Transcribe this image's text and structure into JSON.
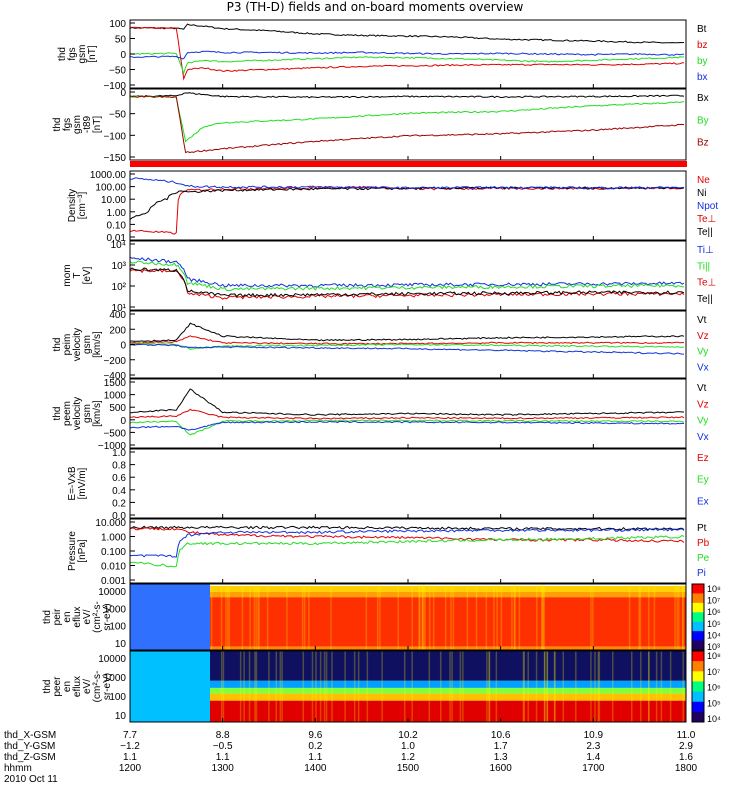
{
  "title": "P3 (TH-D) fields and on-board moments overview",
  "colors": {
    "black": "#000000",
    "red": "#e00000",
    "green": "#22dd22",
    "blue": "#1030e0",
    "darkred": "#a00000",
    "band": "#ff0000"
  },
  "chart_data": [
    {
      "type": "line",
      "name": "fgs",
      "ylabel": [
        "thd",
        "fgs",
        "gsm",
        "[nT]"
      ],
      "yticks": [
        "100",
        "50",
        "0",
        "−50",
        "−100"
      ],
      "ylim": [
        -110,
        110
      ],
      "series": [
        {
          "name": "Bt",
          "color": "black",
          "x": [
            1200,
            1250,
            1258,
            1262,
            1280,
            1300,
            1350,
            1400,
            1450,
            1500,
            1550,
            1600,
            1650,
            1700,
            1750,
            1800
          ],
          "y": [
            85,
            83,
            80,
            95,
            90,
            82,
            75,
            65,
            60,
            58,
            55,
            48,
            45,
            42,
            38,
            35
          ]
        },
        {
          "name": "bz",
          "color": "red",
          "x": [
            1200,
            1250,
            1258,
            1262,
            1280,
            1300,
            1350,
            1400,
            1450,
            1500,
            1550,
            1600,
            1650,
            1700,
            1750,
            1800
          ],
          "y": [
            85,
            83,
            -80,
            -50,
            -45,
            -55,
            -50,
            -45,
            -40,
            -38,
            -36,
            -35,
            -34,
            -35,
            -33,
            -30
          ]
        },
        {
          "name": "by",
          "color": "green",
          "x": [
            1200,
            1250,
            1258,
            1262,
            1280,
            1300,
            1350,
            1400,
            1450,
            1500,
            1550,
            1600,
            1650,
            1700,
            1750,
            1800
          ],
          "y": [
            0,
            2,
            -60,
            -30,
            -20,
            -25,
            -20,
            -15,
            -10,
            -12,
            -15,
            -20,
            -25,
            -20,
            -15,
            -10
          ]
        },
        {
          "name": "bx",
          "color": "blue",
          "x": [
            1200,
            1250,
            1258,
            1262,
            1280,
            1300,
            1350,
            1400,
            1450,
            1500,
            1550,
            1600,
            1650,
            1700,
            1750,
            1800
          ],
          "y": [
            -10,
            -8,
            -15,
            5,
            8,
            5,
            5,
            3,
            5,
            2,
            0,
            2,
            0,
            -2,
            0,
            -3
          ]
        }
      ]
    },
    {
      "type": "line",
      "name": "fgs-t89",
      "ylabel": [
        "thd",
        "fgs",
        "gsm",
        "-t89",
        "[nT]"
      ],
      "yticks": [
        "0",
        "−50",
        "−100",
        "−150"
      ],
      "ylim": [
        -170,
        20
      ],
      "series": [
        {
          "name": "Bx",
          "color": "black",
          "x": [
            1200,
            1250,
            1260,
            1300,
            1400,
            1500,
            1600,
            1700,
            1800
          ],
          "y": [
            0,
            2,
            10,
            0,
            -2,
            0,
            -1,
            0,
            2
          ]
        },
        {
          "name": "By",
          "color": "green",
          "x": [
            1200,
            1250,
            1260,
            1280,
            1300,
            1400,
            1500,
            1600,
            1700,
            1800
          ],
          "y": [
            0,
            -2,
            -120,
            -80,
            -70,
            -60,
            -45,
            -40,
            -25,
            -15
          ]
        },
        {
          "name": "Bz",
          "color": "darkred",
          "x": [
            1200,
            1250,
            1260,
            1280,
            1300,
            1400,
            1500,
            1600,
            1700,
            1800
          ],
          "y": [
            0,
            -2,
            -150,
            -145,
            -140,
            -120,
            -105,
            -100,
            -90,
            -75
          ]
        }
      ]
    },
    {
      "type": "line",
      "name": "density",
      "log": true,
      "ylabel": [
        "Density",
        "[cm⁻³]"
      ],
      "yticks": [
        "1000.00",
        "100.00",
        "10.00",
        "1.00",
        "0.10",
        "0.01"
      ],
      "ylim": [
        0.01,
        1000
      ],
      "series": [
        {
          "name": "Ne",
          "color": "red",
          "x": [
            1200,
            1250,
            1260,
            1300,
            1400,
            1450,
            1500,
            1600,
            1700,
            1800
          ],
          "y": [
            0.05,
            0.03,
            40,
            50,
            60,
            70,
            50,
            55,
            55,
            60
          ]
        },
        {
          "name": "Ni",
          "color": "black",
          "x": [
            1200,
            1220,
            1240,
            1255,
            1262,
            1300,
            1400,
            1500,
            1600,
            1700,
            1800
          ],
          "y": [
            0.3,
            1,
            10,
            40,
            30,
            40,
            50,
            55,
            60,
            60,
            60
          ]
        },
        {
          "name": "Npot",
          "color": "blue",
          "x": [
            1200,
            1250,
            1262,
            1300,
            1400,
            1500,
            1600,
            1700,
            1800
          ],
          "y": [
            300,
            150,
            80,
            70,
            70,
            60,
            65,
            60,
            65
          ]
        }
      ],
      "legend_extra": [
        "Te⊥",
        "Te||"
      ]
    },
    {
      "type": "line",
      "name": "temperature",
      "log": true,
      "ylabel": [
        "mom",
        "T",
        "[eV]"
      ],
      "yticks": [
        "10⁴",
        "10³",
        "10²",
        "10¹"
      ],
      "ylim": [
        10,
        20000
      ],
      "series": [
        {
          "name": "Ti⊥",
          "color": "blue",
          "x": [
            1200,
            1250,
            1262,
            1300,
            1400,
            1500,
            1600,
            1700,
            1800
          ],
          "y": [
            3000,
            2000,
            300,
            150,
            150,
            160,
            170,
            180,
            190
          ]
        },
        {
          "name": "Ti||",
          "color": "green",
          "x": [
            1200,
            1250,
            1262,
            1300,
            1400,
            1500,
            1600,
            1700,
            1800
          ],
          "y": [
            2000,
            1500,
            200,
            100,
            110,
            120,
            130,
            140,
            150
          ]
        },
        {
          "name": "Te⊥",
          "color": "red",
          "x": [
            1200,
            1250,
            1262,
            1300,
            1400,
            1500,
            1600,
            1700,
            1800
          ],
          "y": [
            800,
            700,
            60,
            40,
            45,
            50,
            55,
            60,
            60
          ]
        },
        {
          "name": "Te||",
          "color": "black",
          "x": [
            1200,
            1250,
            1262,
            1300,
            1400,
            1500,
            1600,
            1700,
            1800
          ],
          "y": [
            900,
            800,
            80,
            50,
            55,
            60,
            65,
            70,
            70
          ]
        }
      ]
    },
    {
      "type": "line",
      "name": "peim-velocity",
      "ylabel": [
        "thd",
        "peim",
        "velocity",
        "gsm",
        "[km/s]"
      ],
      "yticks": [
        "400",
        "200",
        "0",
        "−200",
        "−400"
      ],
      "ylim": [
        -400,
        400
      ],
      "series": [
        {
          "name": "Vt",
          "color": "black",
          "x": [
            1200,
            1250,
            1265,
            1300,
            1400,
            1500,
            1600,
            1700,
            1800
          ],
          "y": [
            40,
            50,
            250,
            100,
            50,
            60,
            80,
            90,
            100
          ]
        },
        {
          "name": "Vz",
          "color": "red",
          "x": [
            1200,
            1250,
            1265,
            1300,
            1400,
            1500,
            1600,
            1700,
            1800
          ],
          "y": [
            20,
            30,
            100,
            20,
            10,
            10,
            20,
            20,
            20
          ]
        },
        {
          "name": "Vy",
          "color": "green",
          "x": [
            1200,
            1250,
            1265,
            1300,
            1400,
            1500,
            1600,
            1700,
            1800
          ],
          "y": [
            10,
            0,
            -50,
            -20,
            -10,
            0,
            -10,
            -20,
            -30
          ]
        },
        {
          "name": "Vx",
          "color": "blue",
          "x": [
            1200,
            1250,
            1265,
            1300,
            1400,
            1500,
            1600,
            1700,
            1800
          ],
          "y": [
            0,
            -10,
            -40,
            -30,
            -40,
            -50,
            -70,
            -90,
            -110
          ]
        }
      ]
    },
    {
      "type": "line",
      "name": "peem-velocity",
      "ylabel": [
        "thd",
        "peem",
        "velocity",
        "gsm",
        "[km/s]"
      ],
      "yticks": [
        "1500",
        "1000",
        "500",
        "0",
        "−500",
        "−1000"
      ],
      "ylim": [
        -1100,
        1600
      ],
      "series": [
        {
          "name": "Vt",
          "color": "black",
          "x": [
            1200,
            1250,
            1265,
            1300,
            1400,
            1500,
            1600,
            1700,
            1800
          ],
          "y": [
            300,
            400,
            1200,
            300,
            200,
            250,
            200,
            250,
            300
          ]
        },
        {
          "name": "Vz",
          "color": "red",
          "x": [
            1200,
            1250,
            1265,
            1300,
            1400,
            1500,
            1600,
            1700,
            1800
          ],
          "y": [
            100,
            150,
            400,
            100,
            50,
            80,
            60,
            80,
            100
          ]
        },
        {
          "name": "Vy",
          "color": "green",
          "x": [
            1200,
            1250,
            1265,
            1300,
            1400,
            1500,
            1600,
            1700,
            1800
          ],
          "y": [
            -100,
            -50,
            -600,
            -50,
            -30,
            -20,
            -40,
            -50,
            -60
          ]
        },
        {
          "name": "Vx",
          "color": "blue",
          "x": [
            1200,
            1250,
            1265,
            1300,
            1400,
            1500,
            1600,
            1700,
            1800
          ],
          "y": [
            -300,
            -250,
            -400,
            -100,
            -80,
            -90,
            -100,
            -120,
            -150
          ]
        }
      ]
    },
    {
      "type": "line",
      "name": "efield",
      "ylabel": [
        "E=-VxB",
        "[mV/m]"
      ],
      "yticks": [
        "1.0",
        "0.8",
        "0.6",
        "0.4",
        "0.2",
        "0.0"
      ],
      "ylim": [
        0,
        1
      ],
      "series": [
        {
          "name": "Ez",
          "color": "red",
          "x": [],
          "y": []
        },
        {
          "name": "Ey",
          "color": "green",
          "x": [],
          "y": []
        },
        {
          "name": "Ex",
          "color": "blue",
          "x": [],
          "y": []
        }
      ]
    },
    {
      "type": "line",
      "name": "pressure",
      "log": true,
      "ylabel": [
        "Pressure",
        "[nPa]"
      ],
      "yticks": [
        "10.000",
        "1.000",
        "0.100",
        "0.010",
        "0.001"
      ],
      "ylim": [
        0.001,
        10
      ],
      "series": [
        {
          "name": "Pt",
          "color": "black",
          "x": [
            1200,
            1250,
            1262,
            1300,
            1400,
            1500,
            1600,
            1700,
            1800
          ],
          "y": [
            3,
            3,
            3,
            3,
            3,
            2.8,
            2.5,
            2.5,
            2.5
          ]
        },
        {
          "name": "Pb",
          "color": "red",
          "x": [
            1200,
            1250,
            1262,
            1300,
            1400,
            1500,
            1600,
            1700,
            1800
          ],
          "y": [
            2.5,
            2.5,
            1.5,
            1.0,
            0.8,
            0.7,
            0.5,
            0.5,
            0.4
          ]
        },
        {
          "name": "Pe",
          "color": "green",
          "x": [
            1200,
            1250,
            1262,
            1300,
            1400,
            1500,
            1600,
            1700,
            1800
          ],
          "y": [
            0.02,
            0.01,
            0.3,
            0.3,
            0.3,
            0.4,
            0.5,
            0.6,
            0.8
          ]
        },
        {
          "name": "Pi",
          "color": "blue",
          "x": [
            1200,
            1250,
            1262,
            1300,
            1400,
            1500,
            1600,
            1700,
            1800
          ],
          "y": [
            0.05,
            0.05,
            1.0,
            1.5,
            1.5,
            1.8,
            2.0,
            2.0,
            2.2
          ]
        }
      ]
    },
    {
      "type": "heatmap",
      "name": "peir-eflux",
      "ylabel": [
        "thd",
        "peir",
        "en",
        "eflux",
        "eV/",
        "(cm²-s-",
        "sr-eV)"
      ],
      "yticks": [
        "10000",
        "1000",
        "100",
        "10"
      ],
      "colorbar": [
        "10⁸",
        "10⁷",
        "10⁶",
        "10⁵",
        "10⁴",
        "10³"
      ]
    },
    {
      "type": "heatmap",
      "name": "peer-eflux",
      "ylabel": [
        "thd",
        "peer",
        "en",
        "eflux",
        "eV/",
        "(cm²-s-",
        "sr-eV)"
      ],
      "yticks": [
        "10000",
        "1000",
        "100",
        "10"
      ],
      "colorbar": [
        "10⁸",
        "10⁷",
        "10⁶",
        "10⁵",
        "10⁴"
      ]
    }
  ],
  "xaxis": {
    "range": [
      1200,
      1800
    ],
    "rows": [
      {
        "label": "thd_X-GSM",
        "values": [
          "7.7",
          "8.8",
          "9.6",
          "10.2",
          "10.6",
          "10.9",
          "11.0"
        ]
      },
      {
        "label": "thd_Y-GSM",
        "values": [
          "−1.2",
          "−0.5",
          "0.2",
          "1.0",
          "1.7",
          "2.3",
          "2.9"
        ]
      },
      {
        "label": "thd_Z-GSM",
        "values": [
          "1.1",
          "1.1",
          "1.1",
          "1.2",
          "1.3",
          "1.4",
          "1.6"
        ]
      },
      {
        "label": "hhmm",
        "values": [
          "1200",
          "1300",
          "1400",
          "1500",
          "1600",
          "1700",
          "1800"
        ]
      }
    ],
    "date": "2010 Oct 11"
  }
}
